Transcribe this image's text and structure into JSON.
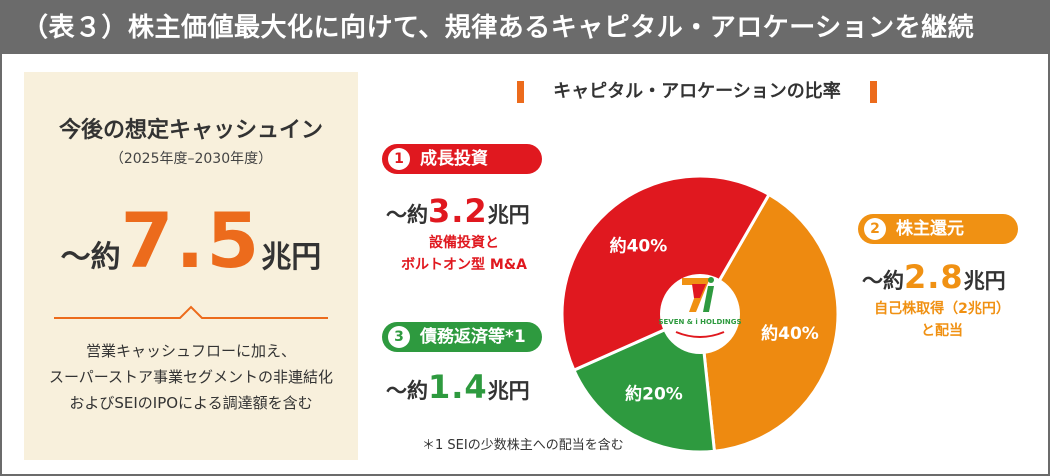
{
  "header": {
    "title": "（表３）株主価値最大化に向けて、規律あるキャピタル・アロケーションを継続"
  },
  "left_panel": {
    "title": "今後の想定キャッシュイン",
    "period": "（2025年度–2030年度）",
    "amount_prefix": "〜約",
    "amount_value": "7.5",
    "amount_unit": "兆円",
    "note_lines": [
      "営業キャッシュフローに加え、",
      "スーパーストア事業セグメントの非連結化",
      "およびSEIのIPOによる調達額を含む"
    ]
  },
  "chart_data": {
    "type": "pie",
    "title": "キャピタル・アロケーションの比率",
    "center_logo": "SEVEN & i HOLDINGS",
    "slices": [
      {
        "label": "成長投資",
        "value": 40,
        "display": "約40%",
        "color": "#e0181f"
      },
      {
        "label": "株主還元",
        "value": 40,
        "display": "約40%",
        "color": "#ee8a10"
      },
      {
        "label": "債務返済等",
        "value": 20,
        "display": "約20%",
        "color": "#2e9a3f"
      }
    ]
  },
  "categories": [
    {
      "number": "1",
      "label": "成長投資",
      "amount_prefix": "〜約",
      "amount_value": "3.2",
      "amount_unit": "兆円",
      "desc_lines": [
        "設備投資と",
        "ボルトオン型 M&A"
      ],
      "color": "#e0181f"
    },
    {
      "number": "2",
      "label": "株主還元",
      "amount_prefix": "〜約",
      "amount_value": "2.8",
      "amount_unit": "兆円",
      "desc_lines": [
        "自己株取得（2兆円）",
        "と配当"
      ],
      "color": "#f09113"
    },
    {
      "number": "3",
      "label": "債務返済等*1",
      "amount_prefix": "〜約",
      "amount_value": "1.4",
      "amount_unit": "兆円",
      "desc_lines": [],
      "color": "#2e9a3f"
    }
  ],
  "footnote": "＊1 SEIの少数株主への配当を含む"
}
